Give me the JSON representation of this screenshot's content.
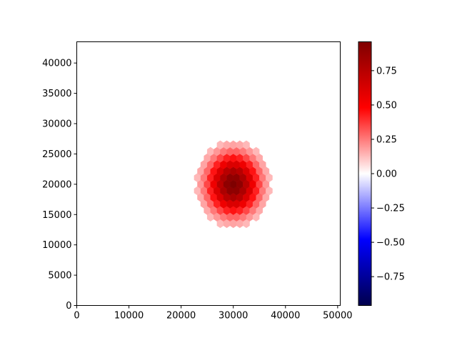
{
  "chart_data": {
    "type": "heatmap",
    "subtype": "hexbin",
    "title": "",
    "xlabel": "",
    "ylabel": "",
    "xlim": [
      0,
      50500
    ],
    "ylim": [
      0,
      43500
    ],
    "x_ticks": [
      0,
      10000,
      20000,
      30000,
      40000,
      50000
    ],
    "y_ticks": [
      0,
      5000,
      10000,
      15000,
      20000,
      25000,
      30000,
      35000,
      40000
    ],
    "x_tick_labels": [
      "0",
      "10000",
      "20000",
      "30000",
      "40000",
      "50000"
    ],
    "y_tick_labels": [
      "0",
      "5000",
      "10000",
      "15000",
      "20000",
      "25000",
      "30000",
      "35000",
      "40000"
    ],
    "colormap": "seismic",
    "colorbar": {
      "range": [
        -0.96,
        0.96
      ],
      "ticks": [
        -0.75,
        -0.5,
        -0.25,
        0.0,
        0.25,
        0.5,
        0.75
      ],
      "tick_labels": [
        "−0.75",
        "−0.50",
        "−0.25",
        "0.00",
        "0.25",
        "0.50",
        "0.75"
      ],
      "position": "right"
    },
    "hexbin": {
      "center_x": 30000,
      "center_y": 20000,
      "peak_value": 0.96,
      "sigma": 3500,
      "hex_spacing_x": 1250,
      "hex_spacing_y": 1080,
      "extent_radius": 7000
    },
    "grid": false
  }
}
